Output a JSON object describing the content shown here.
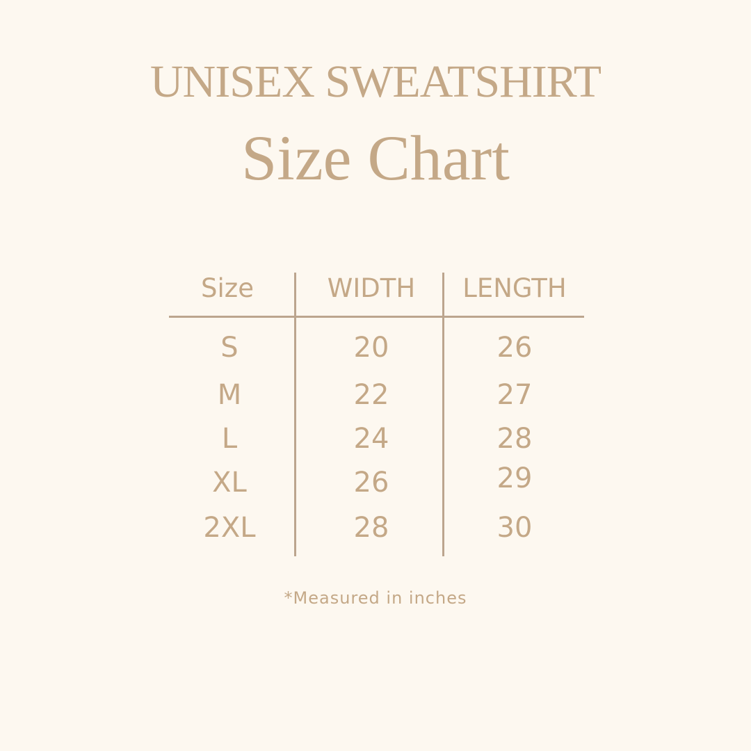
{
  "title": {
    "line1": "UNISEX SWEATSHIRT",
    "line2": "Size Chart"
  },
  "table": {
    "headers": [
      "Size",
      "WIDTH",
      "LENGTH"
    ],
    "rows": [
      [
        "S",
        "20",
        "26"
      ],
      [
        "M",
        "22",
        "27"
      ],
      [
        "L",
        "24",
        "28"
      ],
      [
        "XL",
        "26",
        "29"
      ],
      [
        "2XL",
        "28",
        "30"
      ]
    ]
  },
  "footnote": "*Measured in inches",
  "colors": {
    "background": "#fdf8f0",
    "text": "#c4a887",
    "lines": "#bca58e"
  }
}
